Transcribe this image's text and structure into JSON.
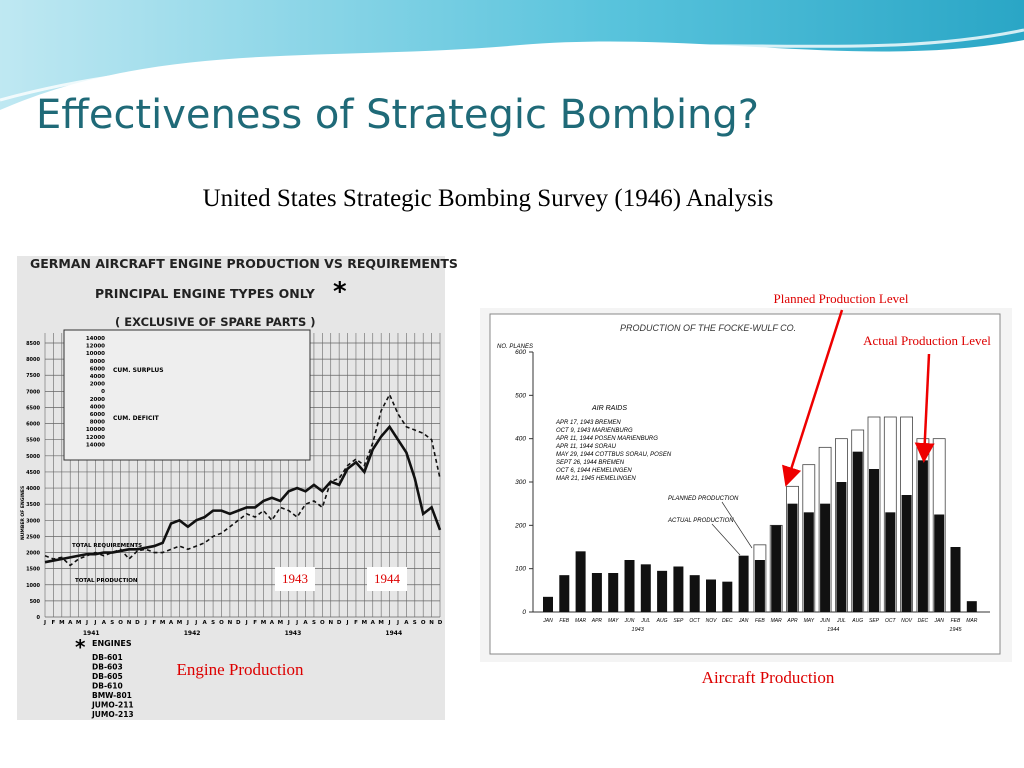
{
  "title": "Effectiveness of Strategic Bombing?",
  "subtitle": "United States Strategic Bombing Survey (1946) Analysis",
  "engine_chart": {
    "title": [
      "GERMAN AIRCRAFT ENGINE PRODUCTION VS REQUIREMENTS",
      "PRINCIPAL ENGINE TYPES ONLY",
      "( EXCLUSIVE OF SPARE PARTS )"
    ],
    "asterisk": "*",
    "ylabel": "NUMBER OF ENGINES",
    "yticks": [
      0,
      500,
      1000,
      1500,
      2000,
      2500,
      3000,
      3500,
      4000,
      4500,
      5000,
      5500,
      6000,
      6500,
      7000,
      7500,
      8000,
      8500
    ],
    "months": [
      "J",
      "F",
      "M",
      "A",
      "M",
      "J",
      "J",
      "A",
      "S",
      "O",
      "N",
      "D"
    ],
    "years": [
      "1941",
      "1942",
      "1943",
      "1944"
    ],
    "production_label": "TOTAL PRODUCTION",
    "requirements_label": "TOTAL REQUIREMENTS",
    "production": [
      1700,
      1750,
      1800,
      1850,
      1900,
      1950,
      1950,
      2000,
      2000,
      2050,
      2100,
      2100,
      2150,
      2200,
      2300,
      2900,
      3000,
      2800,
      3000,
      3100,
      3300,
      3300,
      3200,
      3300,
      3400,
      3400,
      3600,
      3700,
      3600,
      3900,
      4000,
      3900,
      4100,
      3900,
      4200,
      4100,
      4600,
      4800,
      4500,
      5200,
      5600,
      5900,
      5500,
      5100,
      4300,
      3200,
      3400,
      2700
    ],
    "requirements": [
      1900,
      1800,
      1850,
      1600,
      1800,
      1900,
      2000,
      1900,
      2000,
      2100,
      1800,
      2050,
      2100,
      2000,
      2000,
      2100,
      2200,
      2100,
      2200,
      2300,
      2500,
      2600,
      2800,
      3000,
      3200,
      3100,
      3300,
      3000,
      3400,
      3300,
      3100,
      3500,
      3600,
      3400,
      4200,
      4300,
      4700,
      4900,
      4700,
      5400,
      6400,
      6900,
      6300,
      5900,
      5800,
      5700,
      5500,
      4300
    ],
    "inset_labels": [
      "CUM. SURPLUS",
      "CUM. DEFICIT"
    ],
    "inset_ticks": [
      "14000",
      "12000",
      "10000",
      "8000",
      "6000",
      "4000",
      "2000",
      "0",
      "2000",
      "4000",
      "6000",
      "8000",
      "10000",
      "12000",
      "14000"
    ],
    "engines_heading": "ENGINES",
    "engines": [
      "DB-601",
      "DB-603",
      "DB-605",
      "DB-610",
      "BMW-801",
      "JUMO-211",
      "JUMO-213"
    ],
    "markers": [
      "1943",
      "1944"
    ],
    "caption": "Engine Production"
  },
  "aircraft_chart": {
    "title": "PRODUCTION OF THE FOCKE-WULF CO.",
    "ylabel": "NO. PLANES",
    "yticks": [
      0,
      100,
      200,
      300,
      400,
      500,
      600
    ],
    "months": [
      "JAN",
      "FEB",
      "MAR",
      "APR",
      "MAY",
      "JUN",
      "JUL",
      "AUG",
      "SEP",
      "OCT",
      "NOV",
      "DEC",
      "JAN",
      "FEB",
      "MAR",
      "APR",
      "MAY",
      "JUN",
      "JUL",
      "AUG",
      "SEP",
      "OCT",
      "NOV",
      "DEC",
      "JAN",
      "FEB",
      "MAR"
    ],
    "years": [
      "1943",
      "1944",
      "1945"
    ],
    "actual": [
      35,
      85,
      140,
      90,
      90,
      120,
      110,
      95,
      105,
      85,
      75,
      70,
      130,
      120,
      200,
      250,
      230,
      250,
      300,
      370,
      330,
      230,
      270,
      350,
      225,
      150,
      25
    ],
    "planned": [
      null,
      null,
      null,
      null,
      null,
      null,
      null,
      null,
      null,
      null,
      null,
      null,
      null,
      155,
      200,
      290,
      340,
      380,
      400,
      420,
      450,
      450,
      450,
      400,
      400,
      null,
      null
    ],
    "raids_heading": "AIR RAIDS",
    "raids": [
      "APR 17, 1943  BREMEN",
      "OCT 9, 1943  MARIENBURG",
      "APR 11, 1944  POSEN MARIENBURG",
      "APR 11, 1944  SORAU",
      "MAY 29, 1944  COTTBUS SORAU, POSEN",
      "SEPT 26, 1944  BREMEN",
      "OCT 6, 1944  HEMELINGEN",
      "MAR 21, 1945  HEMELINGEN"
    ],
    "planned_label": "PLANNED PRODUCTION",
    "actual_label": "ACTUAL PRODUCTION",
    "caption": "Aircraft  Production"
  },
  "annotations": [
    "Planned Production Level",
    "Actual Production Level"
  ]
}
